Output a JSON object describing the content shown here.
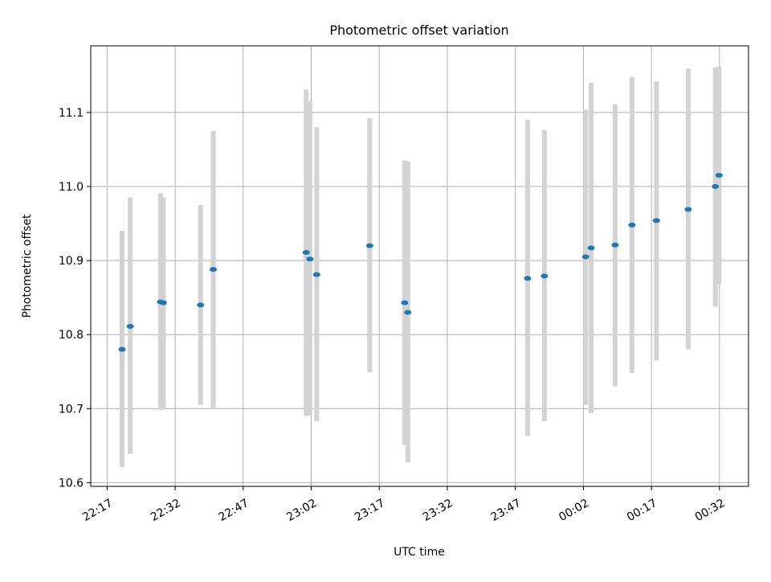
{
  "chart_data": {
    "type": "scatter",
    "title": "Photometric offset variation",
    "xlabel": "UTC time",
    "ylabel": "Photometric offset",
    "x_ticks": [
      {
        "value": 0,
        "label": "22:17"
      },
      {
        "value": 15,
        "label": "22:32"
      },
      {
        "value": 30,
        "label": "22:47"
      },
      {
        "value": 45,
        "label": "23:02"
      },
      {
        "value": 60,
        "label": "23:17"
      },
      {
        "value": 75,
        "label": "23:32"
      },
      {
        "value": 90,
        "label": "23:47"
      },
      {
        "value": 105,
        "label": "00:02"
      },
      {
        "value": 120,
        "label": "00:17"
      },
      {
        "value": 135,
        "label": "00:32"
      }
    ],
    "y_ticks": [
      10.6,
      10.7,
      10.8,
      10.9,
      11.0,
      11.1
    ],
    "xlim": [
      -3.6,
      141.4
    ],
    "ylim": [
      10.595,
      11.19
    ],
    "grid": true,
    "marker_color": "#1f77b4",
    "errorbar_color": "#d3d3d3",
    "points": [
      {
        "x": 3.3,
        "y": 10.78,
        "lo": 10.621,
        "hi": 10.94
      },
      {
        "x": 5.1,
        "y": 10.811,
        "lo": 10.639,
        "hi": 10.985
      },
      {
        "x": 11.8,
        "y": 10.844,
        "lo": 10.698,
        "hi": 10.991
      },
      {
        "x": 12.4,
        "y": 10.843,
        "lo": 10.7,
        "hi": 10.985
      },
      {
        "x": 20.6,
        "y": 10.84,
        "lo": 10.705,
        "hi": 10.975
      },
      {
        "x": 23.4,
        "y": 10.888,
        "lo": 10.701,
        "hi": 11.075
      },
      {
        "x": 43.9,
        "y": 10.911,
        "lo": 10.69,
        "hi": 11.131
      },
      {
        "x": 44.7,
        "y": 10.902,
        "lo": 10.691,
        "hi": 11.115
      },
      {
        "x": 46.2,
        "y": 10.881,
        "lo": 10.683,
        "hi": 11.08
      },
      {
        "x": 57.9,
        "y": 10.92,
        "lo": 10.749,
        "hi": 11.092
      },
      {
        "x": 65.6,
        "y": 10.843,
        "lo": 10.651,
        "hi": 11.035
      },
      {
        "x": 66.3,
        "y": 10.83,
        "lo": 10.627,
        "hi": 11.034
      },
      {
        "x": 92.7,
        "y": 10.876,
        "lo": 10.663,
        "hi": 11.09
      },
      {
        "x": 96.4,
        "y": 10.879,
        "lo": 10.683,
        "hi": 11.076
      },
      {
        "x": 105.5,
        "y": 10.905,
        "lo": 10.705,
        "hi": 11.104
      },
      {
        "x": 106.7,
        "y": 10.917,
        "lo": 10.694,
        "hi": 11.14
      },
      {
        "x": 112.0,
        "y": 10.921,
        "lo": 10.73,
        "hi": 11.111
      },
      {
        "x": 115.7,
        "y": 10.948,
        "lo": 10.748,
        "hi": 11.148
      },
      {
        "x": 121.1,
        "y": 10.954,
        "lo": 10.765,
        "hi": 11.142
      },
      {
        "x": 128.1,
        "y": 10.969,
        "lo": 10.78,
        "hi": 11.159
      },
      {
        "x": 134.1,
        "y": 11.0,
        "lo": 10.838,
        "hi": 11.161
      },
      {
        "x": 134.9,
        "y": 11.015,
        "lo": 10.868,
        "hi": 11.162
      }
    ]
  }
}
